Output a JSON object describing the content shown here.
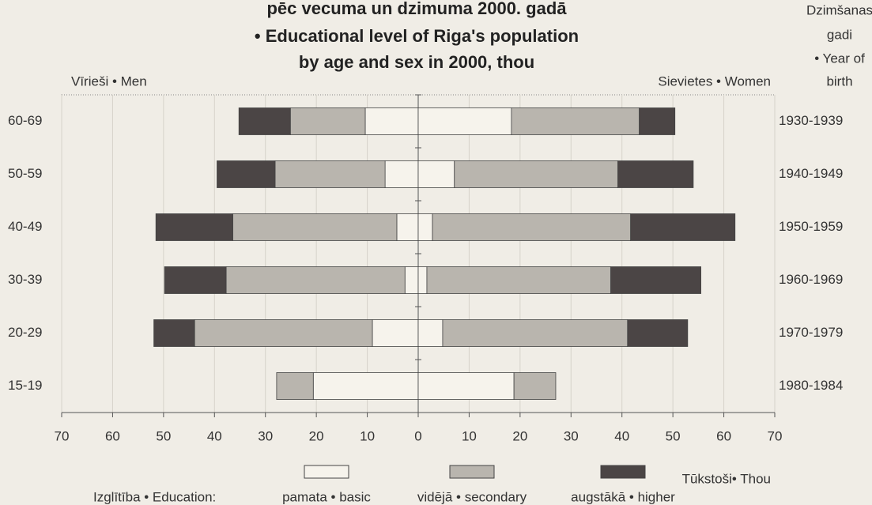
{
  "chart_data": {
    "type": "pyramid",
    "title": [
      "pēc vecuma un dzimuma 2000. gadā",
      "• Educational level of Riga's population",
      "by age and sex in 2000, thou"
    ],
    "left_label": "Vīrieši • Men",
    "right_label": "Sievietes • Women",
    "right_axis_title": [
      "Dzimšanas",
      "gadi",
      "• Year of",
      "birth"
    ],
    "x_axis_label": "Tūkstoši• Thou",
    "legend_title": "Izglītība • Education:",
    "categories": [
      "60-69",
      "50-59",
      "40-49",
      "30-39",
      "20-29",
      "15-19"
    ],
    "right_categories": [
      "1930-1939",
      "1940-1949",
      "1950-1959",
      "1960-1969",
      "1970-1979",
      "1980-1984"
    ],
    "series": [
      {
        "name": "pamata • basic",
        "color": "#f6f3ec",
        "men": [
          10.4,
          6.5,
          4.2,
          2.6,
          9.0,
          20.6
        ],
        "women": [
          18.3,
          7.1,
          2.8,
          1.7,
          4.8,
          18.8
        ]
      },
      {
        "name": "vidējā • secondary",
        "color": "#b9b5ae",
        "men": [
          14.7,
          21.6,
          32.2,
          35.1,
          34.9,
          7.2
        ],
        "women": [
          25.1,
          32.1,
          38.9,
          36.1,
          36.3,
          8.2
        ]
      },
      {
        "name": "augstākā • higher",
        "color": "#4b4545",
        "men": [
          10.1,
          11.4,
          15.1,
          12.1,
          8.0,
          0
        ],
        "women": [
          7.0,
          14.8,
          20.5,
          17.7,
          11.8,
          0
        ]
      }
    ],
    "xlim": [
      -70,
      70
    ],
    "xticks": [
      {
        "value": -70,
        "label": "70"
      },
      {
        "value": -60,
        "label": "60"
      },
      {
        "value": -50,
        "label": "50"
      },
      {
        "value": -40,
        "label": "40"
      },
      {
        "value": -30,
        "label": "30"
      },
      {
        "value": -20,
        "label": "20"
      },
      {
        "value": -10,
        "label": "10"
      },
      0,
      10,
      20,
      30,
      40,
      50,
      60,
      70
    ],
    "grid": true
  }
}
